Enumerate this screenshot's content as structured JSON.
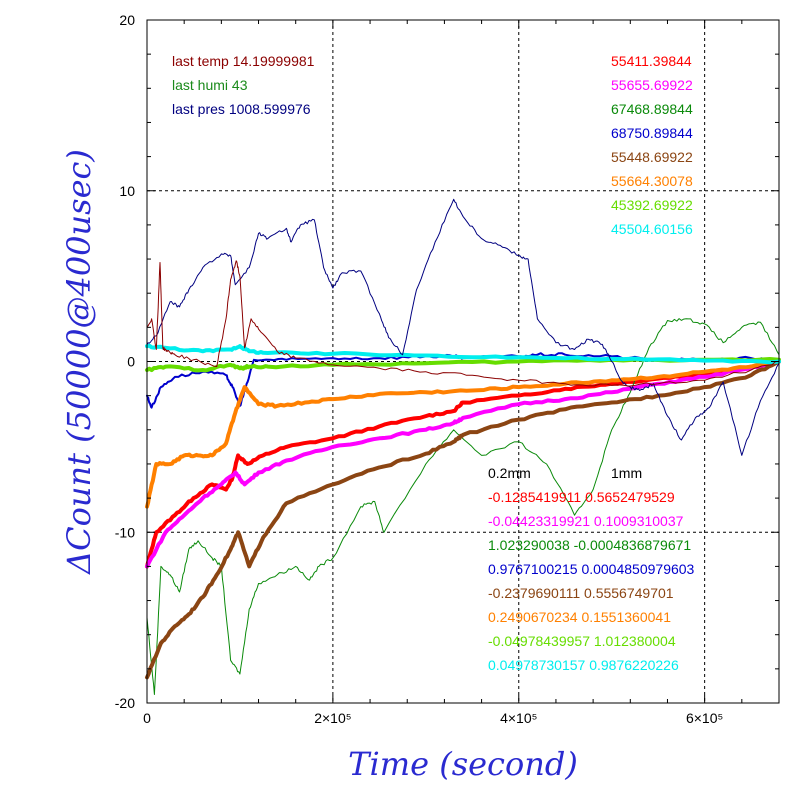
{
  "chart_data": {
    "type": "line",
    "xlabel": "Time (second)",
    "ylabel": "ΔCount (50000@400usec)",
    "xlim": [
      0,
      680000
    ],
    "ylim": [
      -20,
      20
    ],
    "grid": true,
    "x_ticks": [
      {
        "value": 0,
        "label": "0"
      },
      {
        "value": 200000,
        "label": "2×10⁵"
      },
      {
        "value": 400000,
        "label": "4×10⁵"
      },
      {
        "value": 600000,
        "label": "6×10⁵"
      }
    ],
    "y_ticks": [
      {
        "value": -20,
        "label": "-20"
      },
      {
        "value": -10,
        "label": "-10"
      },
      {
        "value": 0,
        "label": "0"
      },
      {
        "value": 10,
        "label": "10"
      },
      {
        "value": 20,
        "label": "20"
      }
    ],
    "annotations_left": [
      {
        "label": "last temp",
        "value": "14.19999981",
        "color": "#8b0000"
      },
      {
        "label": "last humi",
        "value": "43",
        "color": "#1a8a1a"
      },
      {
        "label": "last pres",
        "value": "1008.599976",
        "color": "#000080"
      }
    ],
    "series": [
      {
        "color": "#ff0000",
        "right_value": "55411.39844",
        "coef_02": "-0.1285419911",
        "coef_1": "0.5652479529",
        "width": 4,
        "x": [
          0,
          10000,
          30000,
          50000,
          70000,
          85000,
          92000,
          98000,
          108000,
          125000,
          150000,
          200000,
          250000,
          300000,
          330000,
          340000,
          400000,
          450000,
          500000,
          550000,
          600000,
          650000,
          680000
        ],
        "y": [
          -12,
          -10,
          -9,
          -8,
          -7.2,
          -7.5,
          -6.8,
          -5.5,
          -6,
          -5.5,
          -5,
          -4.5,
          -3.8,
          -3.2,
          -2.9,
          -2.4,
          -2.0,
          -1.6,
          -1.3,
          -1.0,
          -0.7,
          -0.3,
          0
        ]
      },
      {
        "color": "#ff00ff",
        "right_value": "55655.69922",
        "coef_02": "-0.04423319921",
        "coef_1": "0.1009310037",
        "width": 4,
        "x": [
          0,
          20000,
          40000,
          60000,
          80000,
          95000,
          105000,
          120000,
          150000,
          200000,
          250000,
          300000,
          330000,
          340000,
          400000,
          450000,
          500000,
          550000,
          600000,
          650000,
          680000
        ],
        "y": [
          -12,
          -10,
          -9,
          -8,
          -7.2,
          -6.5,
          -7.2,
          -6.5,
          -5.8,
          -5,
          -4.5,
          -4,
          -3.6,
          -3.3,
          -2.5,
          -2.2,
          -1.8,
          -1.3,
          -0.9,
          -0.4,
          0
        ]
      },
      {
        "color": "#0a8a0a",
        "right_value": "67468.89844",
        "coef_02": "1.023290038",
        "coef_1": "-0.0004836879671",
        "width": 1,
        "x": [
          0,
          8000,
          15000,
          25000,
          35000,
          45000,
          55000,
          70000,
          80000,
          90000,
          100000,
          110000,
          120000,
          140000,
          160000,
          175000,
          185000,
          200000,
          230000,
          245000,
          255000,
          300000,
          330000,
          360000,
          400000,
          430000,
          460000,
          480000,
          500000,
          520000,
          540000,
          560000,
          580000,
          600000,
          620000,
          640000,
          660000,
          680000
        ],
        "y": [
          -15,
          -19.5,
          -12,
          -12.5,
          -13.5,
          -11,
          -10.5,
          -11.5,
          -12,
          -17.5,
          -18.3,
          -14.5,
          -13,
          -12.5,
          -12,
          -12.8,
          -12,
          -11.5,
          -8.5,
          -8.2,
          -10,
          -6,
          -4,
          -5.5,
          -4.7,
          -6,
          -9,
          -7.5,
          -4,
          -1.8,
          0.8,
          2.4,
          2.5,
          2.2,
          1.1,
          2.0,
          2.3,
          0.4
        ]
      },
      {
        "color": "#0000cc",
        "right_value": "68750.89844",
        "coef_02": "0.9767100215",
        "coef_1": "0.0004850979603",
        "width": 2,
        "x": [
          0,
          5000,
          15000,
          30000,
          60000,
          85000,
          92000,
          100000,
          106000,
          115000,
          150000,
          200000,
          250000,
          300000,
          330000,
          340000,
          400000,
          420000,
          450000,
          500000,
          550000,
          600000,
          650000,
          680000
        ],
        "y": [
          -2,
          -2.7,
          -1.5,
          -0.9,
          -0.6,
          -0.8,
          -1.5,
          -2.6,
          -1.6,
          0.1,
          0.1,
          0.2,
          0.2,
          0.3,
          0.3,
          0.2,
          0.3,
          0.4,
          0.4,
          0.3,
          0.1,
          0.1,
          0.2,
          0
        ]
      },
      {
        "color": "#8b4513",
        "right_value": "55448.69922",
        "coef_02": "-0.2379690111",
        "coef_1": "0.5556749701",
        "width": 4,
        "x": [
          0,
          15000,
          30000,
          45000,
          60000,
          75000,
          90000,
          98000,
          110000,
          125000,
          150000,
          200000,
          250000,
          300000,
          330000,
          340000,
          400000,
          450000,
          500000,
          550000,
          600000,
          650000,
          680000
        ],
        "y": [
          -18.5,
          -16.5,
          -15.5,
          -14.8,
          -13.8,
          -12.5,
          -11,
          -10,
          -12,
          -10.3,
          -8.3,
          -7.2,
          -6.2,
          -5.4,
          -4.7,
          -4.3,
          -3.4,
          -2.8,
          -2.4,
          -2,
          -1.5,
          -0.8,
          0
        ]
      },
      {
        "color": "#ff8000",
        "right_value": "55664.30078",
        "coef_02": "0.2490670234",
        "coef_1": "0.1551360041",
        "width": 4,
        "x": [
          0,
          10000,
          25000,
          40000,
          55000,
          70000,
          85000,
          95000,
          105000,
          120000,
          140000,
          170000,
          200000,
          250000,
          300000,
          350000,
          400000,
          450000,
          500000,
          550000,
          600000,
          650000,
          680000
        ],
        "y": [
          -8.5,
          -6,
          -6,
          -5.5,
          -5.5,
          -5.5,
          -4.8,
          -3,
          -1.5,
          -2.5,
          -2.6,
          -2.4,
          -2.2,
          -1.9,
          -1.8,
          -1.7,
          -1.5,
          -1.3,
          -1.1,
          -0.9,
          -0.6,
          -0.3,
          0
        ]
      },
      {
        "color": "#66dd00",
        "right_value": "45392.69922",
        "coef_02": "-0.04978439957",
        "coef_1": "1.012380004",
        "width": 4,
        "x": [
          0,
          20000,
          60000,
          90000,
          100000,
          110000,
          130000,
          200000,
          300000,
          400000,
          500000,
          600000,
          680000
        ],
        "y": [
          -0.5,
          -0.3,
          -0.5,
          -0.2,
          -0.4,
          -0.3,
          -0.3,
          -0.2,
          -0.1,
          0,
          0.1,
          0.1,
          0.1
        ]
      },
      {
        "color": "#00eeee",
        "right_value": "45504.60156",
        "coef_02": "0.04978730157",
        "coef_1": "0.9876220226",
        "width": 4,
        "x": [
          0,
          20000,
          60000,
          90000,
          100000,
          110000,
          130000,
          200000,
          300000,
          400000,
          500000,
          600000,
          680000
        ],
        "y": [
          0.9,
          0.8,
          0.6,
          0.7,
          0.9,
          0.6,
          0.5,
          0.45,
          0.35,
          0.25,
          0.15,
          0.05,
          0
        ]
      },
      {
        "color": "#000080",
        "right_value": "",
        "coef_02": "",
        "coef_1": "",
        "width": 1,
        "x": [
          0,
          10000,
          25000,
          35000,
          45000,
          60000,
          80000,
          90000,
          95000,
          110000,
          120000,
          130000,
          150000,
          155000,
          165000,
          180000,
          190000,
          200000,
          210000,
          230000,
          250000,
          260000,
          275000,
          290000,
          310000,
          330000,
          340000,
          360000,
          380000,
          400000,
          410000,
          420000,
          440000,
          460000,
          475000,
          490000,
          500000,
          510000,
          520000,
          530000,
          545000,
          560000,
          575000,
          590000,
          605000,
          620000,
          640000,
          660000,
          680000
        ],
        "y": [
          1,
          1.5,
          3.5,
          3.2,
          4.2,
          5.5,
          6.3,
          6.2,
          4.5,
          5.5,
          7.5,
          7.2,
          7.8,
          7,
          8,
          8.3,
          5.5,
          4.3,
          5.2,
          5.3,
          2.8,
          1.4,
          0.4,
          4.2,
          7.0,
          9.5,
          8.5,
          7.2,
          6.8,
          6.2,
          6.0,
          2.5,
          1.1,
          0.7,
          1.3,
          1.0,
          0,
          -1.1,
          -1.5,
          -1.7,
          -1.3,
          -3.2,
          -4.6,
          -3.3,
          -2.7,
          -1.2,
          -5.5,
          -2.3,
          -0.1
        ]
      },
      {
        "color": "#8b0000",
        "right_value": "",
        "coef_02": "",
        "coef_1": "",
        "width": 1,
        "x": [
          0,
          5000,
          10000,
          14000,
          17000,
          22000,
          30000,
          50000,
          75000,
          85000,
          90000,
          96000,
          100000,
          105000,
          112000,
          120000,
          140000,
          160000,
          200000,
          250000,
          300000,
          350000,
          400000,
          450000,
          500000,
          550000,
          600000,
          650000,
          680000
        ],
        "y": [
          2,
          2.5,
          0.7,
          5.8,
          0.8,
          0.6,
          0.4,
          0.1,
          -0.3,
          2.5,
          4.8,
          5.9,
          5.0,
          0.8,
          2.5,
          1.9,
          0.6,
          0.2,
          -0.2,
          -0.4,
          -0.6,
          -0.8,
          -1.1,
          -1.3,
          -1.4,
          -1.3,
          -1.1,
          -0.5,
          0
        ]
      }
    ],
    "coef_headers": {
      "col1": "0.2mm",
      "col2": "1mm"
    }
  }
}
